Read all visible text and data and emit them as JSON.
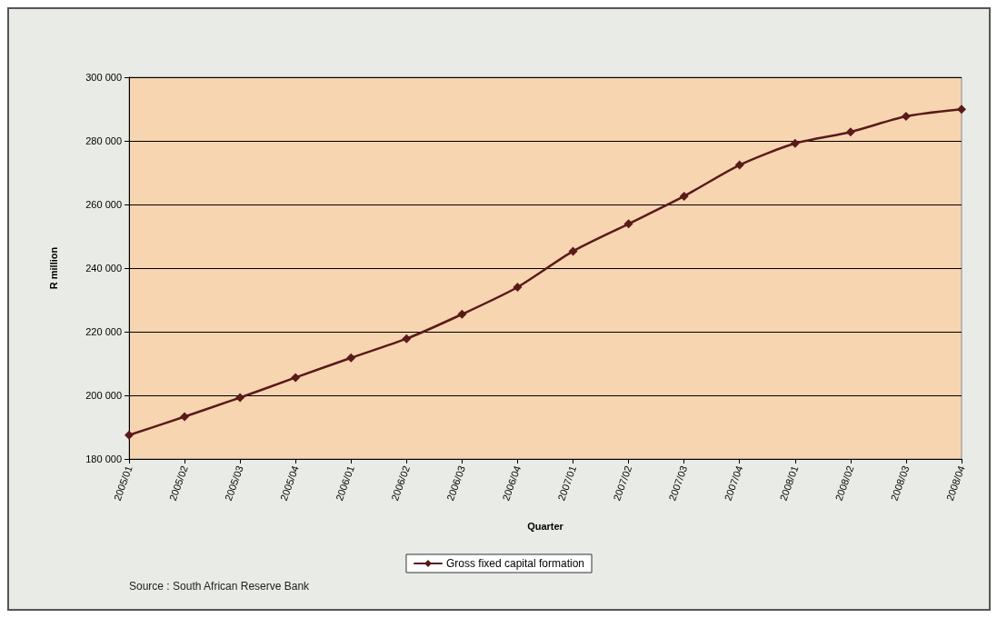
{
  "chart_data": {
    "type": "line",
    "xlabel": "Quarter",
    "ylabel": "R million",
    "categories": [
      "2005/01",
      "2005/02",
      "2005/03",
      "2005/04",
      "2006/01",
      "2006/02",
      "2006/03",
      "2006/04",
      "2007/01",
      "2007/02",
      "2007/03",
      "2007/04",
      "2008/01",
      "2008/02",
      "2008/03",
      "2008/04"
    ],
    "series": [
      {
        "name": "Gross fixed capital formation",
        "color": "#5a1a1a",
        "values": [
          187500,
          193300,
          199300,
          205600,
          211800,
          217800,
          225500,
          234000,
          245300,
          253900,
          262600,
          272400,
          279200,
          282800,
          287700,
          289900
        ]
      }
    ],
    "ylim": [
      180000,
      300000
    ],
    "yticks": [
      {
        "value": 180000,
        "label": "180 000"
      },
      {
        "value": 200000,
        "label": "200 000"
      },
      {
        "value": 220000,
        "label": "220 000"
      },
      {
        "value": 240000,
        "label": "240 000"
      },
      {
        "value": 260000,
        "label": "260 000"
      },
      {
        "value": 280000,
        "label": "280 000"
      },
      {
        "value": 300000,
        "label": "300 000"
      }
    ],
    "grid": "y",
    "legend": "bottom",
    "marker": "diamond",
    "line_style": "solid",
    "annotations": [
      "Source : South African Reserve Bank"
    ]
  }
}
